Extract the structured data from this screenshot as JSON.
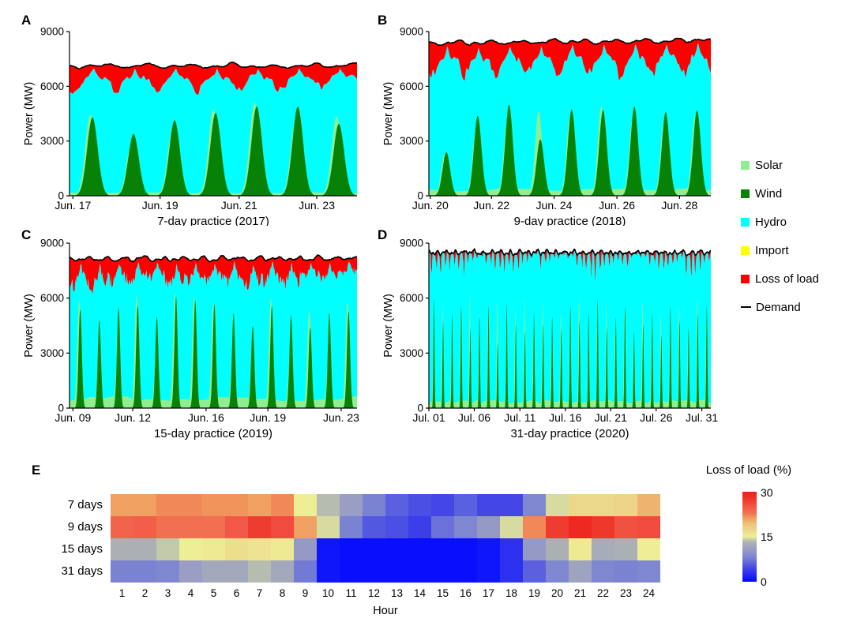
{
  "colors": {
    "solar": "#90ee90",
    "wind": "#078207",
    "hydro": "#00ffff",
    "import": "#ffff00",
    "loss": "#ff0000",
    "demand": "#000000"
  },
  "legend": {
    "items": [
      {
        "label": "Solar",
        "color": "#90ee90",
        "marker": "square"
      },
      {
        "label": "Wind",
        "color": "#078207",
        "marker": "square"
      },
      {
        "label": "Hydro",
        "color": "#00ffff",
        "marker": "square"
      },
      {
        "label": "Import",
        "color": "#ffff00",
        "marker": "square"
      },
      {
        "label": "Loss of load",
        "color": "#ff0000",
        "marker": "square"
      },
      {
        "label": "Demand",
        "color": "#000000",
        "marker": "line"
      }
    ]
  },
  "chart_data": [
    {
      "id": "A",
      "label": "A",
      "type": "area",
      "title": "7-day practice (2017)",
      "ylabel": "Power (MW)",
      "ylim": [
        0,
        9000
      ],
      "yticks": [
        0,
        3000,
        6000,
        9000
      ],
      "days": 7,
      "xticks": [
        {
          "label": "Jun. 17",
          "pos": 0.012
        },
        {
          "label": "Jun. 19",
          "pos": 0.315
        },
        {
          "label": "Jun. 21",
          "pos": 0.59
        },
        {
          "label": "Jun. 23",
          "pos": 0.86
        }
      ],
      "demand_mean": 7120,
      "demand_trend": 0,
      "red_style": "broad",
      "red_min": 90,
      "red_depth": [
        1500,
        1520,
        1480,
        1500,
        1420,
        1480,
        1350
      ],
      "wind_peaks": [
        4300,
        3400,
        4150,
        4550,
        4900,
        4900,
        3950
      ],
      "solar_peaks": [
        4450,
        2800,
        3600,
        4750,
        5100,
        4100,
        4350
      ],
      "solar_floor": 180,
      "wind_sigma": 3.1,
      "solar_sigma": 2.9,
      "series": [
        "Solar",
        "Wind",
        "Hydro",
        "Import",
        "Loss of load",
        "Demand"
      ]
    },
    {
      "id": "B",
      "label": "B",
      "type": "area",
      "title": "9-day practice (2018)",
      "ylabel": "Power (MW)",
      "ylim": [
        0,
        9000
      ],
      "yticks": [
        0,
        3000,
        6000,
        9000
      ],
      "days": 9,
      "xticks": [
        {
          "label": "Jun. 20",
          "pos": 0.005
        },
        {
          "label": "Jun. 22",
          "pos": 0.222
        },
        {
          "label": "Jun. 24",
          "pos": 0.444
        },
        {
          "label": "Jun. 26",
          "pos": 0.667
        },
        {
          "label": "Jun. 28",
          "pos": 0.889
        }
      ],
      "demand_mean": 8360,
      "demand_trend": 20,
      "red_style": "broad",
      "red_min": 120,
      "red_depth": [
        2000,
        2100,
        2050,
        2100,
        2000,
        2050,
        2100,
        1950,
        2150
      ],
      "wind_peaks": [
        2400,
        4400,
        5000,
        3100,
        4750,
        4700,
        4900,
        4600,
        4700
      ],
      "solar_peaks": [
        2300,
        3600,
        4200,
        4650,
        4300,
        4900,
        4200,
        4100,
        4400
      ],
      "solar_floor": 350,
      "wind_sigma": 2.9,
      "solar_sigma": 2.7,
      "series": [
        "Solar",
        "Wind",
        "Hydro",
        "Import",
        "Loss of load",
        "Demand"
      ]
    },
    {
      "id": "C",
      "label": "C",
      "type": "area",
      "title": "15-day practice (2019)",
      "ylabel": "Power (MW)",
      "ylim": [
        0,
        9000
      ],
      "yticks": [
        0,
        3000,
        6000,
        9000
      ],
      "days": 15,
      "xticks": [
        {
          "label": "Jun. 09",
          "pos": 0.012
        },
        {
          "label": "Jun. 12",
          "pos": 0.22
        },
        {
          "label": "Jun. 16",
          "pos": 0.475
        },
        {
          "label": "Jun. 19",
          "pos": 0.69
        },
        {
          "label": "Jun. 23",
          "pos": 0.945
        }
      ],
      "demand_mean": 8150,
      "demand_trend": 0,
      "red_style": "spiky",
      "red_min": 80,
      "red_depth": [
        1750,
        1900,
        1500,
        1650,
        1250,
        1800,
        1500,
        1450,
        1600,
        1800,
        1550,
        1750,
        1300,
        1500,
        1150
      ],
      "wind_peaks": [
        5400,
        4800,
        5500,
        5600,
        5000,
        6100,
        5900,
        5700,
        5200,
        4500,
        5600,
        5100,
        4400,
        5200,
        5300
      ],
      "solar_peaks": [
        5900,
        2000,
        2600,
        6200,
        2300,
        6300,
        6100,
        5800,
        2500,
        2100,
        6000,
        2700,
        5300,
        2400,
        5800
      ],
      "solar_floor": 550,
      "wind_sigma": 2.0,
      "solar_sigma": 2.4,
      "series": [
        "Solar",
        "Wind",
        "Hydro",
        "Import",
        "Loss of load",
        "Demand"
      ]
    },
    {
      "id": "D",
      "label": "D",
      "type": "area",
      "title": "31-day practice (2020)",
      "ylabel": "Power (MW)",
      "ylim": [
        0,
        9000
      ],
      "yticks": [
        0,
        3000,
        6000,
        9000
      ],
      "days": 31,
      "xticks": [
        {
          "label": "Jul. 01",
          "pos": 0.0
        },
        {
          "label": "Jul. 06",
          "pos": 0.161
        },
        {
          "label": "Jul. 11",
          "pos": 0.323
        },
        {
          "label": "Jul. 16",
          "pos": 0.484
        },
        {
          "label": "Jul. 21",
          "pos": 0.645
        },
        {
          "label": "Jul. 26",
          "pos": 0.806
        },
        {
          "label": "Jul. 31",
          "pos": 0.968
        }
      ],
      "demand_mean": 8480,
      "demand_trend": 0,
      "red_style": "teeth",
      "red_min": 40,
      "red_depth": [
        1300,
        1100,
        900,
        1200,
        700,
        300,
        800,
        1400,
        1000,
        1300,
        600,
        200,
        900,
        400,
        200,
        300,
        900,
        1300,
        1400,
        800,
        400,
        900,
        200,
        300,
        700,
        1200,
        900,
        400,
        1100,
        1300,
        600
      ],
      "wind_peaks": [
        6000,
        4800,
        5200,
        5600,
        4400,
        5000,
        5600,
        3600,
        5800,
        4600,
        4200,
        5200,
        4600,
        5000,
        4400,
        5600,
        4800,
        5200,
        6000,
        4400,
        5000,
        5600,
        4200,
        4600,
        5200,
        4000,
        5600,
        4800,
        4400,
        5200,
        5600
      ],
      "solar_peaks": [
        4400,
        5600,
        3600,
        5200,
        6200,
        4000,
        5000,
        5800,
        3800,
        5400,
        6000,
        4400,
        5800,
        3600,
        5200,
        4400,
        6000,
        3800,
        4600,
        5800,
        4200,
        5400,
        3600,
        5800,
        4600,
        5200,
        3800,
        5600,
        4200,
        6000,
        4800
      ],
      "solar_floor": 380,
      "wind_sigma": 1.5,
      "solar_sigma": 1.7,
      "series": [
        "Solar",
        "Wind",
        "Hydro",
        "Import",
        "Loss of load",
        "Demand"
      ]
    },
    {
      "id": "E",
      "label": "E",
      "type": "heatmap",
      "xlabel": "Hour",
      "rows": [
        "7 days",
        "9 days",
        "15 days",
        "31 days"
      ],
      "cols": [
        "1",
        "2",
        "3",
        "4",
        "5",
        "6",
        "7",
        "8",
        "9",
        "10",
        "11",
        "12",
        "13",
        "14",
        "15",
        "16",
        "17",
        "18",
        "19",
        "20",
        "21",
        "22",
        "23",
        "24"
      ],
      "values": [
        [
          21,
          21,
          22,
          22,
          21.5,
          21.5,
          21,
          22,
          15,
          13.5,
          11,
          8,
          6,
          5,
          4.5,
          6,
          4.5,
          4.5,
          8.5,
          14.5,
          17,
          17,
          17.5,
          20
        ],
        [
          24,
          24.5,
          23,
          23,
          23,
          25,
          27,
          26,
          21,
          14.5,
          8,
          5.5,
          5,
          4,
          7,
          8.5,
          10.5,
          14.5,
          22,
          27,
          29,
          27.5,
          25.5,
          26
        ],
        [
          13,
          13,
          14,
          15,
          15.5,
          16.5,
          16,
          15.5,
          10.5,
          1,
          0.5,
          0.5,
          0.5,
          0.5,
          0.5,
          0.5,
          1,
          3,
          10.5,
          13,
          15.5,
          12.5,
          13,
          15
        ],
        [
          8,
          8,
          8.5,
          11,
          12,
          12,
          13.5,
          12,
          7.5,
          1,
          0.5,
          0.5,
          0.5,
          0.5,
          0.5,
          0.5,
          1,
          3,
          6,
          8.5,
          11.5,
          8.5,
          8,
          8.5
        ]
      ],
      "colorbar": {
        "title": "Loss of load (%)",
        "min": 0,
        "max": 30,
        "ticks": [
          30,
          15,
          0
        ],
        "stops": [
          {
            "v": 0,
            "c": "#0008ff"
          },
          {
            "v": 4,
            "c": "#3c3ee9"
          },
          {
            "v": 8,
            "c": "#7a82d2"
          },
          {
            "v": 11,
            "c": "#9a9ec4"
          },
          {
            "v": 13,
            "c": "#aab0b4"
          },
          {
            "v": 14,
            "c": "#c2c8aa"
          },
          {
            "v": 15,
            "c": "#eeee96"
          },
          {
            "v": 17,
            "c": "#ecd88b"
          },
          {
            "v": 19,
            "c": "#ecc87e"
          },
          {
            "v": 21,
            "c": "#f0a060"
          },
          {
            "v": 23,
            "c": "#f07050"
          },
          {
            "v": 25,
            "c": "#f25847"
          },
          {
            "v": 27,
            "c": "#ee3d30"
          },
          {
            "v": 30,
            "c": "#ee1f1a"
          }
        ]
      }
    }
  ]
}
